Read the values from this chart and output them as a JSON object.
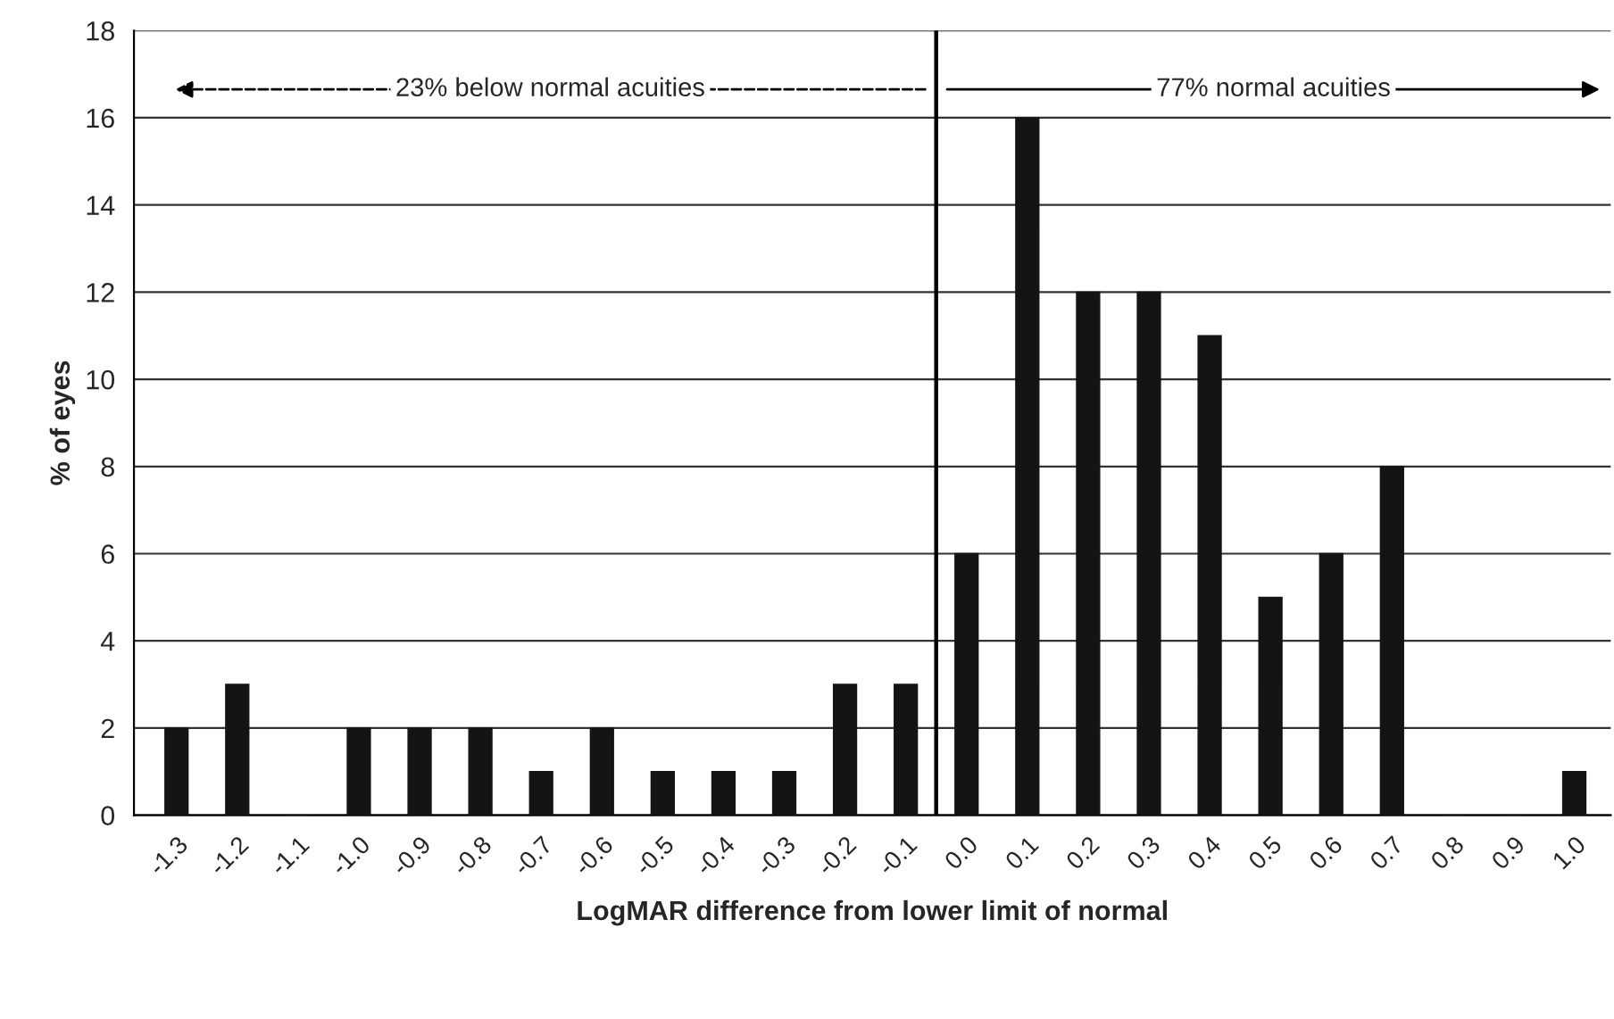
{
  "chart_data": {
    "type": "bar",
    "xlabel": "LogMAR difference from lower limit of normal",
    "ylabel": "% of eyes",
    "x": [
      -1.3,
      -1.2,
      -1.1,
      -1.0,
      -0.9,
      -0.8,
      -0.7,
      -0.6,
      -0.5,
      -0.4,
      -0.3,
      -0.2,
      -0.1,
      0.0,
      0.1,
      0.2,
      0.3,
      0.4,
      0.5,
      0.6,
      0.7,
      0.8,
      0.9,
      1.0
    ],
    "values": [
      2,
      3,
      0,
      2,
      2,
      2,
      1,
      2,
      1,
      1,
      1,
      3,
      3,
      6,
      16,
      12,
      12,
      11,
      5,
      6,
      8,
      0,
      0,
      1
    ],
    "color": "#141414",
    "xlim": [
      -1.37,
      1.06
    ],
    "xticks": [
      {
        "value": -1.3,
        "label": "-1.3"
      },
      {
        "value": -1.2,
        "label": "-1.2"
      },
      {
        "value": -1.1,
        "label": "-1.1"
      },
      {
        "value": -1.0,
        "label": "-1.0"
      },
      {
        "value": -0.9,
        "label": "-0.9"
      },
      {
        "value": -0.8,
        "label": "-0.8"
      },
      {
        "value": -0.7,
        "label": "-0.7"
      },
      {
        "value": -0.6,
        "label": "-0.6"
      },
      {
        "value": -0.5,
        "label": "-0.5"
      },
      {
        "value": -0.4,
        "label": "-0.4"
      },
      {
        "value": -0.3,
        "label": "-0.3"
      },
      {
        "value": -0.2,
        "label": "-0.2"
      },
      {
        "value": -0.1,
        "label": "-0.1"
      },
      {
        "value": 0.0,
        "label": "0.0"
      },
      {
        "value": 0.1,
        "label": "0.1"
      },
      {
        "value": 0.2,
        "label": "0.2"
      },
      {
        "value": 0.3,
        "label": "0.3"
      },
      {
        "value": 0.4,
        "label": "0.4"
      },
      {
        "value": 0.5,
        "label": "0.5"
      },
      {
        "value": 0.6,
        "label": "0.6"
      },
      {
        "value": 0.7,
        "label": "0.7"
      },
      {
        "value": 0.8,
        "label": "0.8"
      },
      {
        "value": 0.9,
        "label": "0.9"
      },
      {
        "value": 1.0,
        "label": "1.0"
      }
    ],
    "ylim": [
      0,
      18
    ],
    "yticks": [
      0,
      2,
      4,
      6,
      8,
      10,
      12,
      14,
      16,
      18
    ],
    "grid": "y",
    "ref_lines": [
      {
        "axis": "x",
        "value": -0.05,
        "color": "#000000"
      }
    ],
    "annotations": [
      "23% below normal acuities",
      "77% normal acuities"
    ]
  }
}
